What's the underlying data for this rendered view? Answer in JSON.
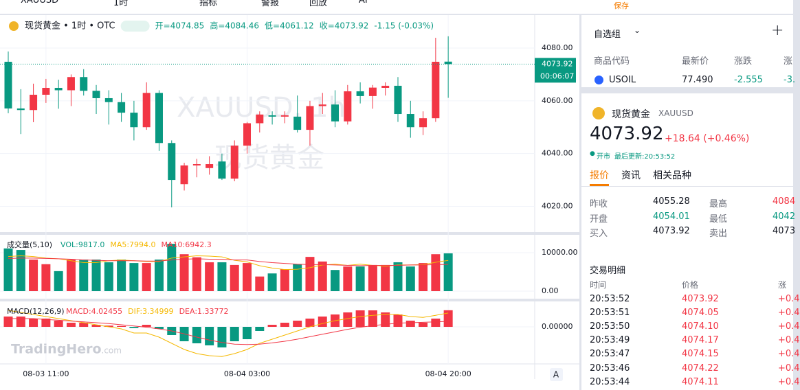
{
  "toolbar": {
    "symbol": "XAUUSD",
    "interval": "1时",
    "indicators": "指标",
    "alert": "警报",
    "replay": "回放",
    "ai": "AI",
    "save": "保存"
  },
  "chart_data": {
    "type": "candlestick",
    "title": "现货黄金 • 1时 • OTC",
    "ohlc_labels": [
      "开=4074.85",
      "高=4084.46",
      "低=4061.12",
      "收=4073.92"
    ],
    "change_label": "-1.15 (-0.03%)",
    "watermark": [
      "XAUUSD, 1h",
      "现货黄金"
    ],
    "logo": "TradingHero",
    "logo_suffix": ".com",
    "categories": [
      null,
      null,
      null,
      "08-03 11:00",
      null,
      null,
      null,
      null,
      null,
      null,
      null,
      null,
      null,
      null,
      null,
      null,
      null,
      null,
      null,
      "08-04 03:00",
      null,
      null,
      null,
      null,
      null,
      null,
      null,
      null,
      null,
      null,
      null,
      null,
      null,
      null,
      null,
      "08-04 20:00"
    ],
    "open": [
      4074.8,
      4057.1,
      4056.5,
      4062.3,
      4064.9,
      4064.0,
      4069.0,
      4063.8,
      4061.0,
      4059.5,
      4055.5,
      4050.0,
      4063.0,
      4044.0,
      4028.4,
      4035.5,
      4034.5,
      4037.0,
      4030.5,
      4043.0,
      4051.5,
      4054.5,
      4054.0,
      4054.0,
      4049.0,
      4058.0,
      4058.6,
      4052.2,
      4063.6,
      4061.8,
      4064.9,
      4065.7,
      4055.0,
      4050.0,
      4053.4,
      4074.85
    ],
    "high": [
      4078.7,
      4064.4,
      4066.5,
      4068.3,
      4068.0,
      4070.0,
      4072.0,
      4066.0,
      4064.0,
      4063.0,
      4060.0,
      4067.0,
      4064.0,
      4045.0,
      4036.5,
      4038.0,
      4039.0,
      4040.0,
      4045.0,
      4052.0,
      4056.0,
      4056.0,
      4056.0,
      4062.0,
      4060.0,
      4063.0,
      4064.0,
      4066.0,
      4067.0,
      4066.0,
      4067.0,
      4069.0,
      4060.0,
      4056.0,
      4083.9,
      4084.46
    ],
    "low": [
      4055.3,
      4047.4,
      4051.9,
      4059.2,
      4057.0,
      4058.0,
      4062.0,
      4055.0,
      4051.0,
      4052.0,
      4045.0,
      4049.0,
      4041.0,
      4019.6,
      4026.0,
      4031.0,
      4032.0,
      4030.0,
      4029.5,
      4040.0,
      4048.0,
      4051.0,
      4051.5,
      4048.0,
      4043.0,
      4055.0,
      4050.0,
      4051.0,
      4059.0,
      4057.0,
      4062.0,
      4052.0,
      4046.0,
      4047.0,
      4052.0,
      4061.12
    ],
    "close": [
      4057.1,
      4056.5,
      4062.3,
      4064.9,
      4064.0,
      4069.0,
      4063.8,
      4061.0,
      4059.5,
      4055.5,
      4050.0,
      4063.0,
      4044.0,
      4030.0,
      4035.5,
      4036.0,
      4036.0,
      4030.5,
      4043.0,
      4051.5,
      4054.8,
      4054.0,
      4054.5,
      4049.0,
      4058.0,
      4058.6,
      4052.2,
      4063.6,
      4061.8,
      4065.0,
      4065.7,
      4055.0,
      4050.0,
      4053.4,
      4074.8,
      4073.92
    ],
    "up_color": "#f23645",
    "down_color": "#089981",
    "ylim": [
      4010.5,
      4086.5
    ],
    "yticks": [
      {
        "value": 4080,
        "label": "4080.00"
      },
      {
        "value": 4060,
        "label": "4060.00"
      },
      {
        "value": 4040,
        "label": "4040.00"
      },
      {
        "value": 4020,
        "label": "4020.00"
      }
    ],
    "last_price": {
      "value": 4073.92,
      "label": "4073.92"
    },
    "countdown": "00:06:07",
    "grid": true,
    "volume": {
      "title": "成交量(5,10)",
      "labels": [
        {
          "text": "VOL:9817.0",
          "color": "#089981"
        },
        {
          "text": "MA5:7994.0",
          "color": "#f5b800"
        },
        {
          "text": "MA10:6942.3",
          "color": "#f23645"
        }
      ],
      "values": [
        11100,
        10700,
        8200,
        7000,
        5200,
        8200,
        8200,
        8200,
        7500,
        8200,
        7300,
        7300,
        8200,
        12300,
        9600,
        8800,
        7500,
        7500,
        6800,
        7300,
        3800,
        4600,
        5700,
        7000,
        8900,
        7700,
        5500,
        6400,
        6400,
        6800,
        6800,
        7500,
        6400,
        7300,
        9600,
        9817
      ],
      "series": [
        {
          "name": "MA5",
          "color": "#f5b800",
          "values": [
            9000,
            9200,
            9000,
            8600,
            8400,
            7900,
            7400,
            7400,
            7900,
            8100,
            7900,
            7700,
            7700,
            8600,
            8900,
            9200,
            9100,
            8900,
            8000,
            7600,
            6600,
            6000,
            5600,
            5700,
            6100,
            6800,
            7000,
            6700,
            7000,
            6700,
            6500,
            6800,
            6800,
            6900,
            7500,
            7994
          ]
        },
        {
          "name": "MA10",
          "color": "#f23645",
          "values": [
            8500,
            8600,
            8600,
            8500,
            8400,
            8300,
            8100,
            8000,
            7900,
            7900,
            7900,
            7800,
            7800,
            8100,
            8300,
            8400,
            8300,
            8300,
            8100,
            8100,
            7700,
            7400,
            7200,
            7000,
            6900,
            6900,
            6800,
            6700,
            6600,
            6700,
            6700,
            6700,
            6800,
            6800,
            6900,
            6942.3
          ]
        }
      ],
      "ylim": [
        0,
        14100
      ],
      "yticks": [
        {
          "value": 10000,
          "label": "10000.00"
        },
        {
          "value": 0,
          "label": "0.00"
        }
      ]
    },
    "macd": {
      "title": "MACD(12,26,9)",
      "labels": [
        {
          "text": "MACD:4.02455",
          "color": "#f23645"
        },
        {
          "text": "DIF:3.34999",
          "color": "#f5b800"
        },
        {
          "text": "DEA:1.33772",
          "color": "#f23645"
        }
      ],
      "values": [
        2.5,
        2.5,
        2,
        2,
        1.5,
        1,
        1,
        0.5,
        0.3,
        0.2,
        -0.3,
        0.5,
        -0.5,
        -2,
        -3.5,
        -4,
        -4.5,
        -5,
        -3.5,
        -3,
        -1,
        0.5,
        1,
        1.5,
        2,
        2.5,
        3,
        3.5,
        4,
        4,
        3.5,
        3,
        1.5,
        1,
        2,
        4.02455
      ],
      "series": [
        {
          "name": "DIF",
          "color": "#f5b800",
          "values": [
            4,
            3.5,
            3,
            2.5,
            2,
            1.5,
            1,
            0.5,
            0,
            -0.5,
            -1.5,
            -1.5,
            -2.5,
            -4,
            -5.5,
            -6.5,
            -7,
            -7.2,
            -6.5,
            -5.5,
            -4,
            -3,
            -2,
            -1,
            0,
            0.8,
            1.5,
            2,
            2.5,
            2.8,
            3,
            3,
            2.5,
            2.3,
            2.8,
            3.34999
          ]
        },
        {
          "name": "DEA",
          "color": "#f23645",
          "values": [
            2,
            2,
            2,
            1.8,
            1.6,
            1.4,
            1.2,
            1,
            0.8,
            0.5,
            0.2,
            -0.1,
            -0.5,
            -1,
            -1.7,
            -2.5,
            -3.2,
            -3.8,
            -4.2,
            -4.3,
            -4.2,
            -3.9,
            -3.5,
            -3,
            -2.4,
            -1.8,
            -1.2,
            -0.6,
            -0.1,
            0.3,
            0.6,
            0.9,
            1,
            1.1,
            1.2,
            1.33772
          ]
        }
      ],
      "ylim": [
        -9,
        6
      ],
      "yticks": [
        {
          "value": 0,
          "label": "0.00000"
        }
      ]
    },
    "scale_mode": "A"
  },
  "panel": {
    "watchlist": {
      "title": "自选组",
      "add": "+",
      "headers": [
        "商品代码",
        "最新价",
        "涨跌",
        "涨"
      ],
      "rows": [
        [
          "USOIL",
          "77.490",
          "-2.555",
          "-3."
        ]
      ]
    },
    "quote": {
      "name": "现货黄金",
      "symbol": "XAUUSD",
      "price": "4073.92",
      "change": "+18.64 (+0.46%)",
      "status": "开市",
      "updated": "最后更新:20:53:52"
    },
    "tabs": [
      "报价",
      "资讯",
      "相关品种"
    ],
    "stats": [
      [
        "昨收",
        "4055.28",
        "最高",
        "4084"
      ],
      [
        "开盘",
        "4054.01",
        "最低",
        "4042"
      ],
      [
        "买入",
        "4073.92",
        "卖出",
        "4073"
      ]
    ],
    "trades": {
      "title": "交易明细",
      "headers": [
        "时间",
        "价格",
        "涨"
      ],
      "rows": [
        [
          "20:53:52",
          "4073.92",
          "+0.4"
        ],
        [
          "20:53:51",
          "4074.05",
          "+0.4"
        ],
        [
          "20:53:50",
          "4074.10",
          "+0.4"
        ],
        [
          "20:53:49",
          "4074.17",
          "+0.4"
        ],
        [
          "20:53:47",
          "4074.15",
          "+0.4"
        ],
        [
          "20:53:46",
          "4074.22",
          "+0.4"
        ],
        [
          "20:53:44",
          "4074.11",
          "+0.4"
        ]
      ]
    }
  }
}
